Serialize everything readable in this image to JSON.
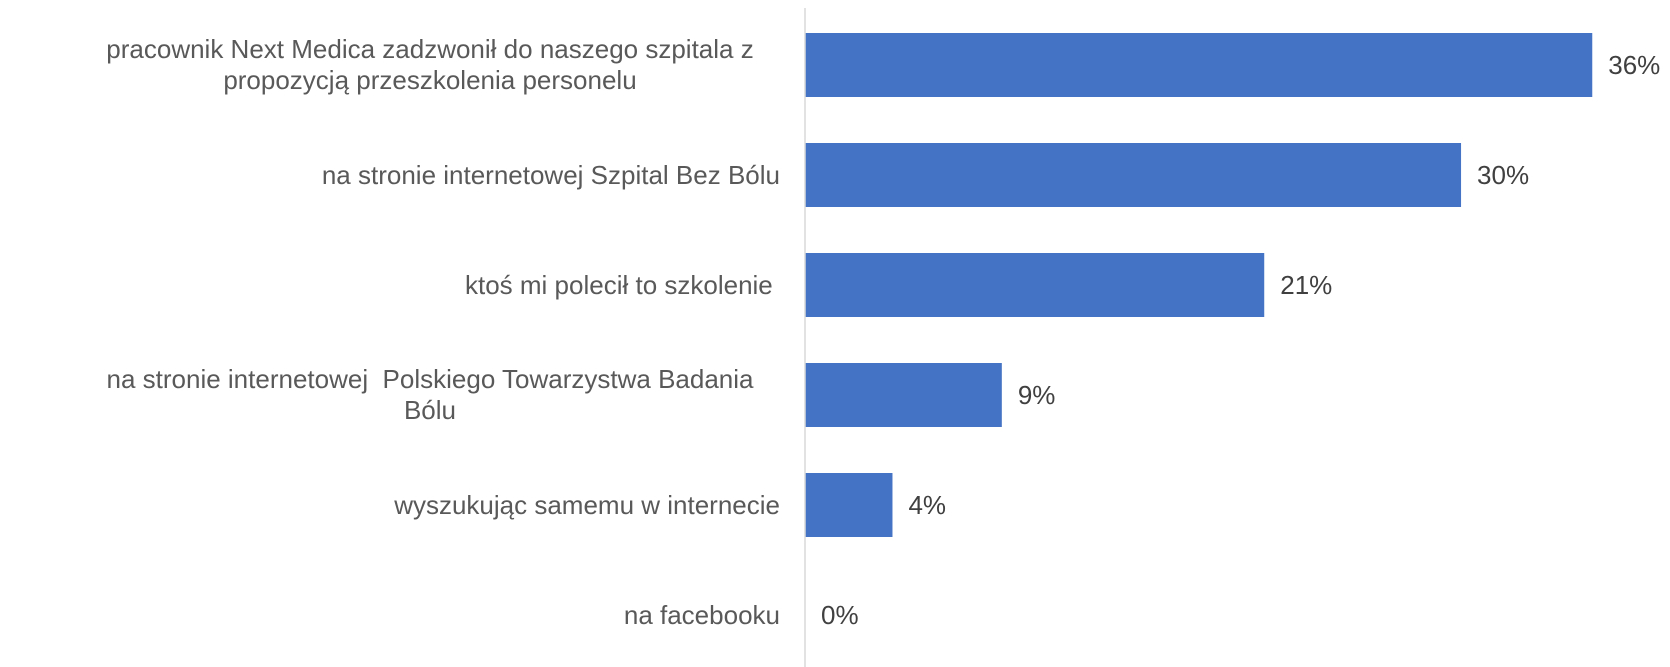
{
  "chart_data": {
    "type": "barh",
    "categories": [
      "pracownik Next Medica zadzwonił do naszego szpitala z propozycją przeszkolenia personelu",
      "na stronie internetowej Szpital Bez Bólu",
      "ktoś mi polecił to szkolenie ",
      "na stronie internetowej  Polskiego Towarzystwa Badania Bólu",
      "wyszukując samemu w internecie",
      "na facebooku"
    ],
    "values": [
      36,
      30,
      21,
      9,
      4,
      0
    ],
    "value_labels": [
      "36%",
      "30%",
      "21%",
      "9%",
      "4%",
      "0%"
    ],
    "color": "#4472c4",
    "xlim": [
      0,
      38
    ]
  }
}
